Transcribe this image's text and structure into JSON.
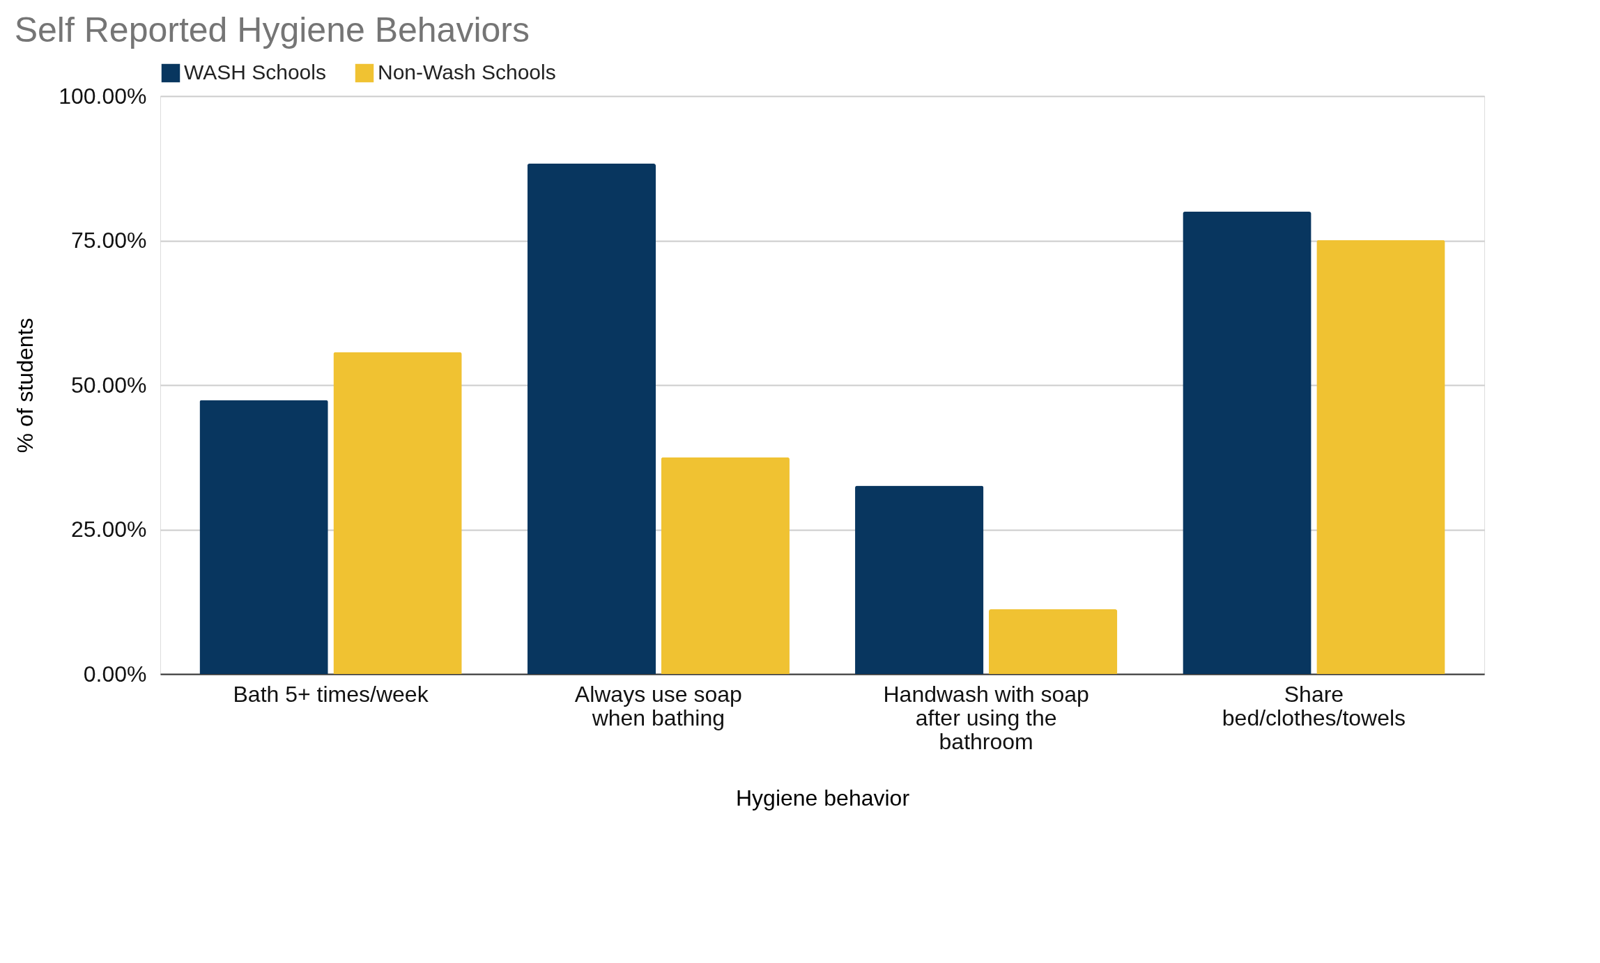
{
  "chart_data": {
    "type": "bar",
    "title": "Self Reported Hygiene Behaviors",
    "xlabel": "Hygiene behavior",
    "ylabel": "% of students",
    "categories": [
      "Bath 5+ times/week",
      "Always use soap when bathing",
      "Handwash with soap after using the bathroom",
      "Share bed/clothes/towels"
    ],
    "series": [
      {
        "name": "WASH Schools",
        "color": "#08365f",
        "values": [
          47.4,
          88.3,
          32.6,
          80.0
        ]
      },
      {
        "name": "Non-Wash Schools",
        "color": "#f0c232",
        "values": [
          55.7,
          37.5,
          11.2,
          75.1
        ]
      }
    ],
    "ylim": [
      0,
      100
    ],
    "yticks": [
      {
        "value": 0,
        "label": "0.00%"
      },
      {
        "value": 25,
        "label": "25.00%"
      },
      {
        "value": 50,
        "label": "50.00%"
      },
      {
        "value": 75,
        "label": "75.00%"
      },
      {
        "value": 100,
        "label": "100.00%"
      }
    ],
    "grid": "y",
    "legend": "top"
  }
}
